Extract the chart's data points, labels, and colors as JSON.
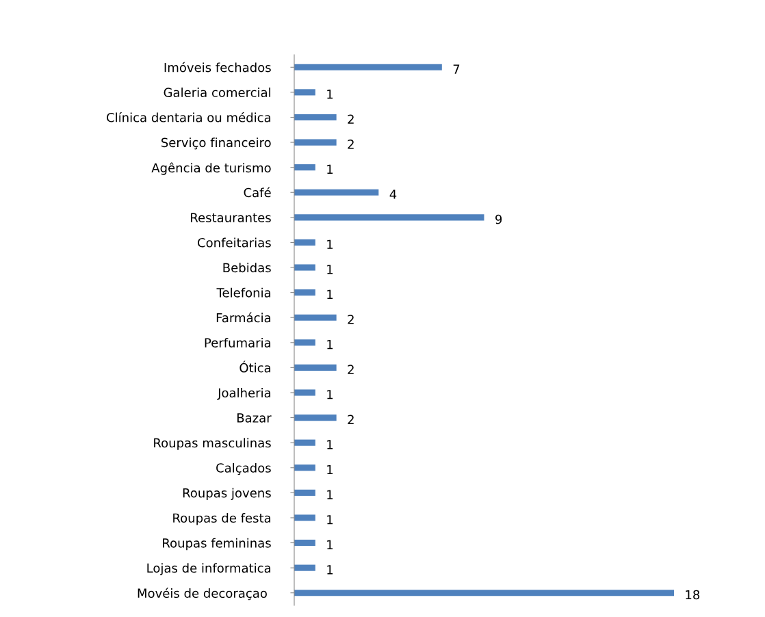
{
  "chart_data": {
    "type": "bar",
    "orientation": "horizontal",
    "data_labels": true,
    "color": "#4f81bd",
    "categories": [
      "Imóveis fechados",
      "Galeria comercial",
      "Clínica dentaria ou médica",
      "Serviço financeiro",
      "Agência de turismo",
      "Café",
      "Restaurantes",
      "Confeitarias",
      "Bebidas",
      "Telefonia",
      "Farmácia",
      "Perfumaria",
      "Ótica",
      "Joalheria",
      "Bazar",
      "Roupas masculinas",
      "Calçados",
      "Roupas jovens",
      "Roupas de festa",
      "Roupas femininas",
      "Lojas de informatica",
      "Movéis de decoraçao "
    ],
    "values": [
      7,
      1,
      2,
      2,
      1,
      4,
      9,
      1,
      1,
      1,
      2,
      1,
      2,
      1,
      2,
      1,
      1,
      1,
      1,
      1,
      1,
      18
    ]
  }
}
